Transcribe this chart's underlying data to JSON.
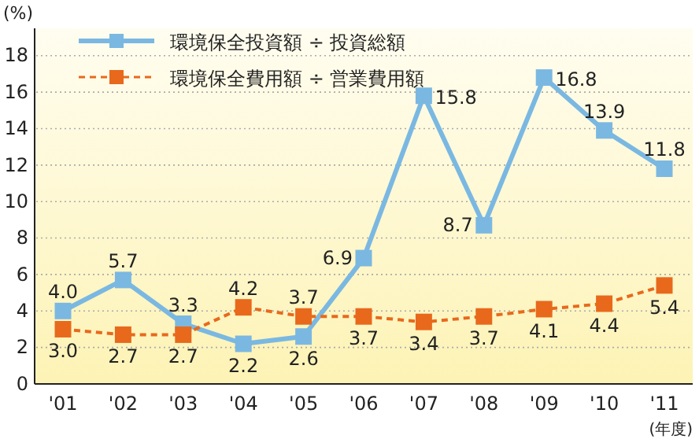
{
  "chart_data": {
    "type": "line",
    "ylabel": "(%)",
    "xlabel": "(年度)",
    "categories": [
      "'01",
      "'02",
      "'03",
      "'04",
      "'05",
      "'06",
      "'07",
      "'08",
      "'09",
      "'10",
      "'11"
    ],
    "series": [
      {
        "name": "環境保全投資額 ÷ 投資総額",
        "color": "#7ab8e2",
        "line_style": "solid",
        "values": [
          4.0,
          5.7,
          3.3,
          2.2,
          2.6,
          6.9,
          15.8,
          8.7,
          16.8,
          13.9,
          11.8
        ],
        "value_labels": [
          "4.0",
          "5.7",
          "3.3",
          "2.2",
          "2.6",
          "6.9",
          "15.8",
          "8.7",
          "16.8",
          "13.9",
          "11.8"
        ]
      },
      {
        "name": "環境保全費用額 ÷ 営業費用額",
        "color": "#e8691c",
        "line_style": "dashed",
        "values": [
          3.0,
          2.7,
          2.7,
          4.2,
          3.7,
          3.7,
          3.4,
          3.7,
          4.1,
          4.4,
          5.4
        ],
        "value_labels": [
          "3.0",
          "2.7",
          "2.7",
          "4.2",
          "3.7",
          "3.7",
          "3.4",
          "3.7",
          "4.1",
          "4.4",
          "5.4"
        ]
      }
    ],
    "ylim": [
      0,
      19.5
    ],
    "yticks": [
      0,
      2,
      4,
      6,
      8,
      10,
      12,
      14,
      16,
      18
    ],
    "grid": "y",
    "legend": "top left",
    "marker": "square"
  }
}
